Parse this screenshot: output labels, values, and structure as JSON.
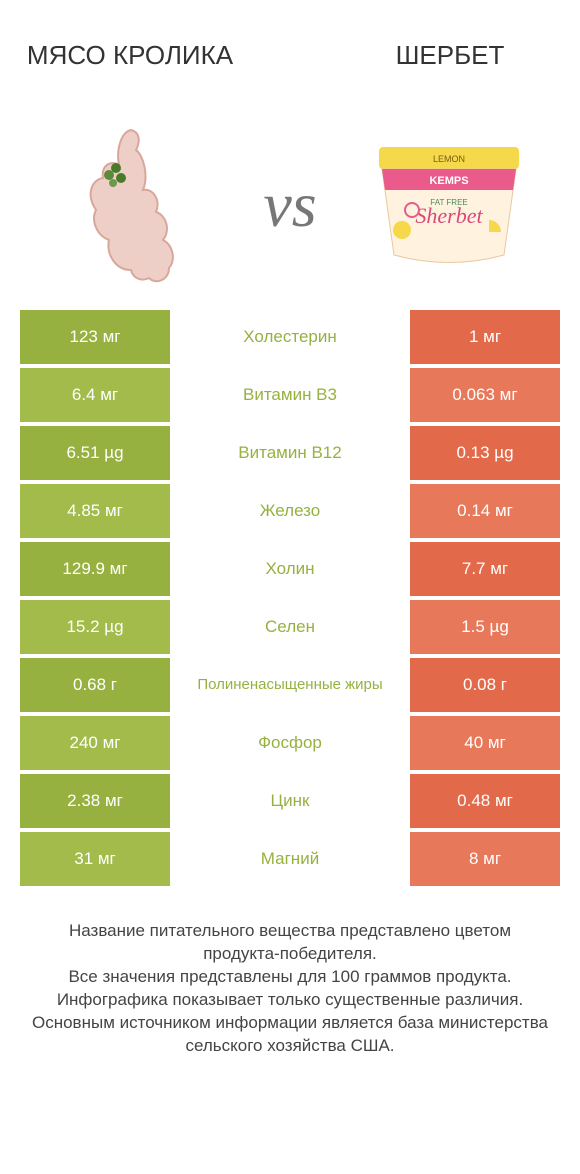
{
  "colors": {
    "left_bg": "#96b140",
    "left_bg_alt": "#a2bb4a",
    "right_bg": "#e26a4a",
    "right_bg_alt": "#e8785a",
    "mid_text_left": "#96b140",
    "mid_text_right": "#e26a4a",
    "header_text": "#333333",
    "vs_text": "#777777",
    "footer_text": "#444444"
  },
  "header": {
    "left_title": "МЯСО КРОЛИКА",
    "right_title": "ШЕРБЕТ",
    "vs": "vs"
  },
  "rows": [
    {
      "left": "123 мг",
      "mid": "Холестерин",
      "right": "1 мг",
      "winner": "left",
      "mid_small": false
    },
    {
      "left": "6.4 мг",
      "mid": "Витамин B3",
      "right": "0.063 мг",
      "winner": "left",
      "mid_small": false
    },
    {
      "left": "6.51 µg",
      "mid": "Витамин B12",
      "right": "0.13 µg",
      "winner": "left",
      "mid_small": false
    },
    {
      "left": "4.85 мг",
      "mid": "Железо",
      "right": "0.14 мг",
      "winner": "left",
      "mid_small": false
    },
    {
      "left": "129.9 мг",
      "mid": "Холин",
      "right": "7.7 мг",
      "winner": "left",
      "mid_small": false
    },
    {
      "left": "15.2 µg",
      "mid": "Селен",
      "right": "1.5 µg",
      "winner": "left",
      "mid_small": false
    },
    {
      "left": "0.68 г",
      "mid": "Полиненасыщенные жиры",
      "right": "0.08 г",
      "winner": "left",
      "mid_small": true
    },
    {
      "left": "240 мг",
      "mid": "Фосфор",
      "right": "40 мг",
      "winner": "left",
      "mid_small": false
    },
    {
      "left": "2.38 мг",
      "mid": "Цинк",
      "right": "0.48 мг",
      "winner": "left",
      "mid_small": false
    },
    {
      "left": "31 мг",
      "mid": "Магний",
      "right": "8 мг",
      "winner": "left",
      "mid_small": false
    }
  ],
  "footer": {
    "line1": "Название питательного вещества представлено цветом продукта-победителя.",
    "line2": "Все значения представлены для 100 граммов продукта.",
    "line3": "Инфографика показывает только существенные различия.",
    "line4": "Основным источником информации является база министерства сельского хозяйства США."
  }
}
